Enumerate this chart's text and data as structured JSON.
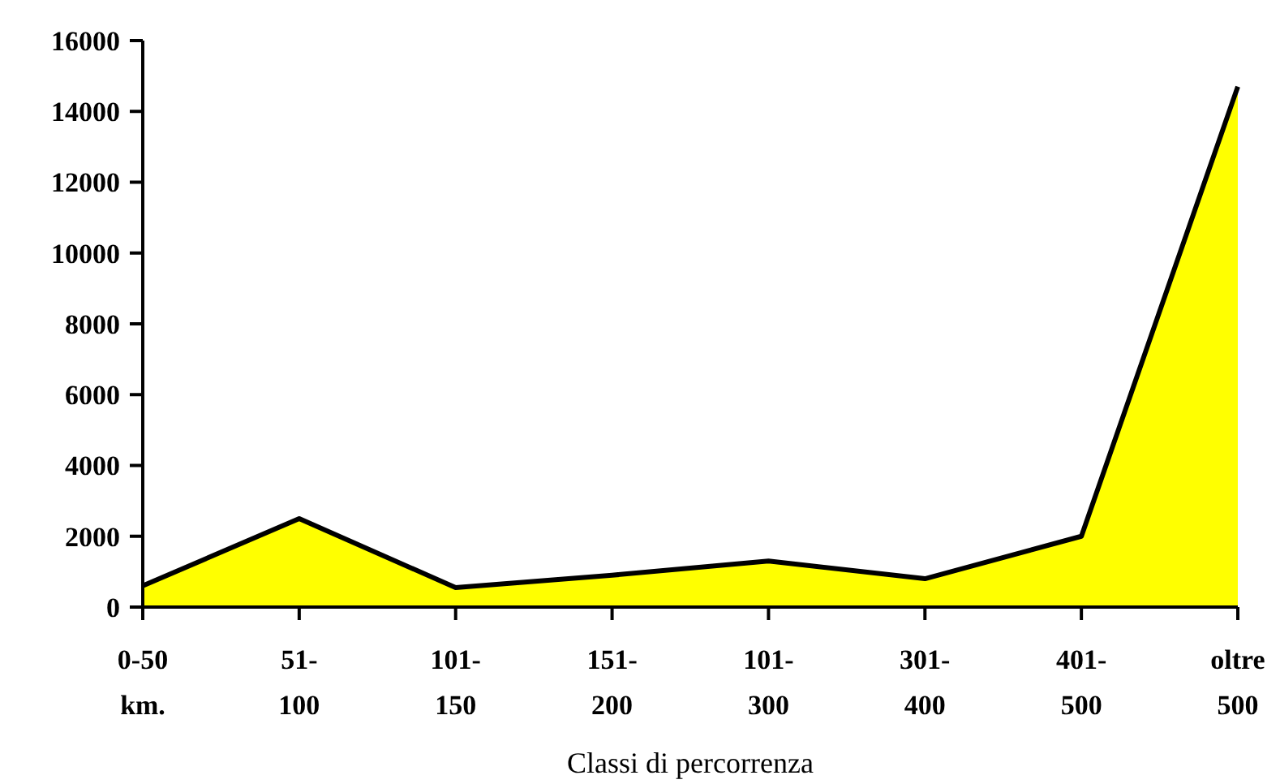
{
  "chart_data": {
    "type": "area",
    "xlabel": "Classi di percorrenza",
    "categories": [
      "0-50\nkm.",
      "51-\n100",
      "101-\n150",
      "151-\n200",
      "101-\n300",
      "301-\n400",
      "401-\n500",
      "oltre\n500"
    ],
    "series": [
      {
        "color": "#ffff00",
        "values": [
          600,
          2500,
          550,
          900,
          1300,
          800,
          2000,
          14700
        ]
      }
    ],
    "ylim": [
      0,
      16000
    ],
    "yticks": [
      0,
      2000,
      4000,
      6000,
      8000,
      10000,
      12000,
      14000,
      16000
    ],
    "grid": false
  }
}
